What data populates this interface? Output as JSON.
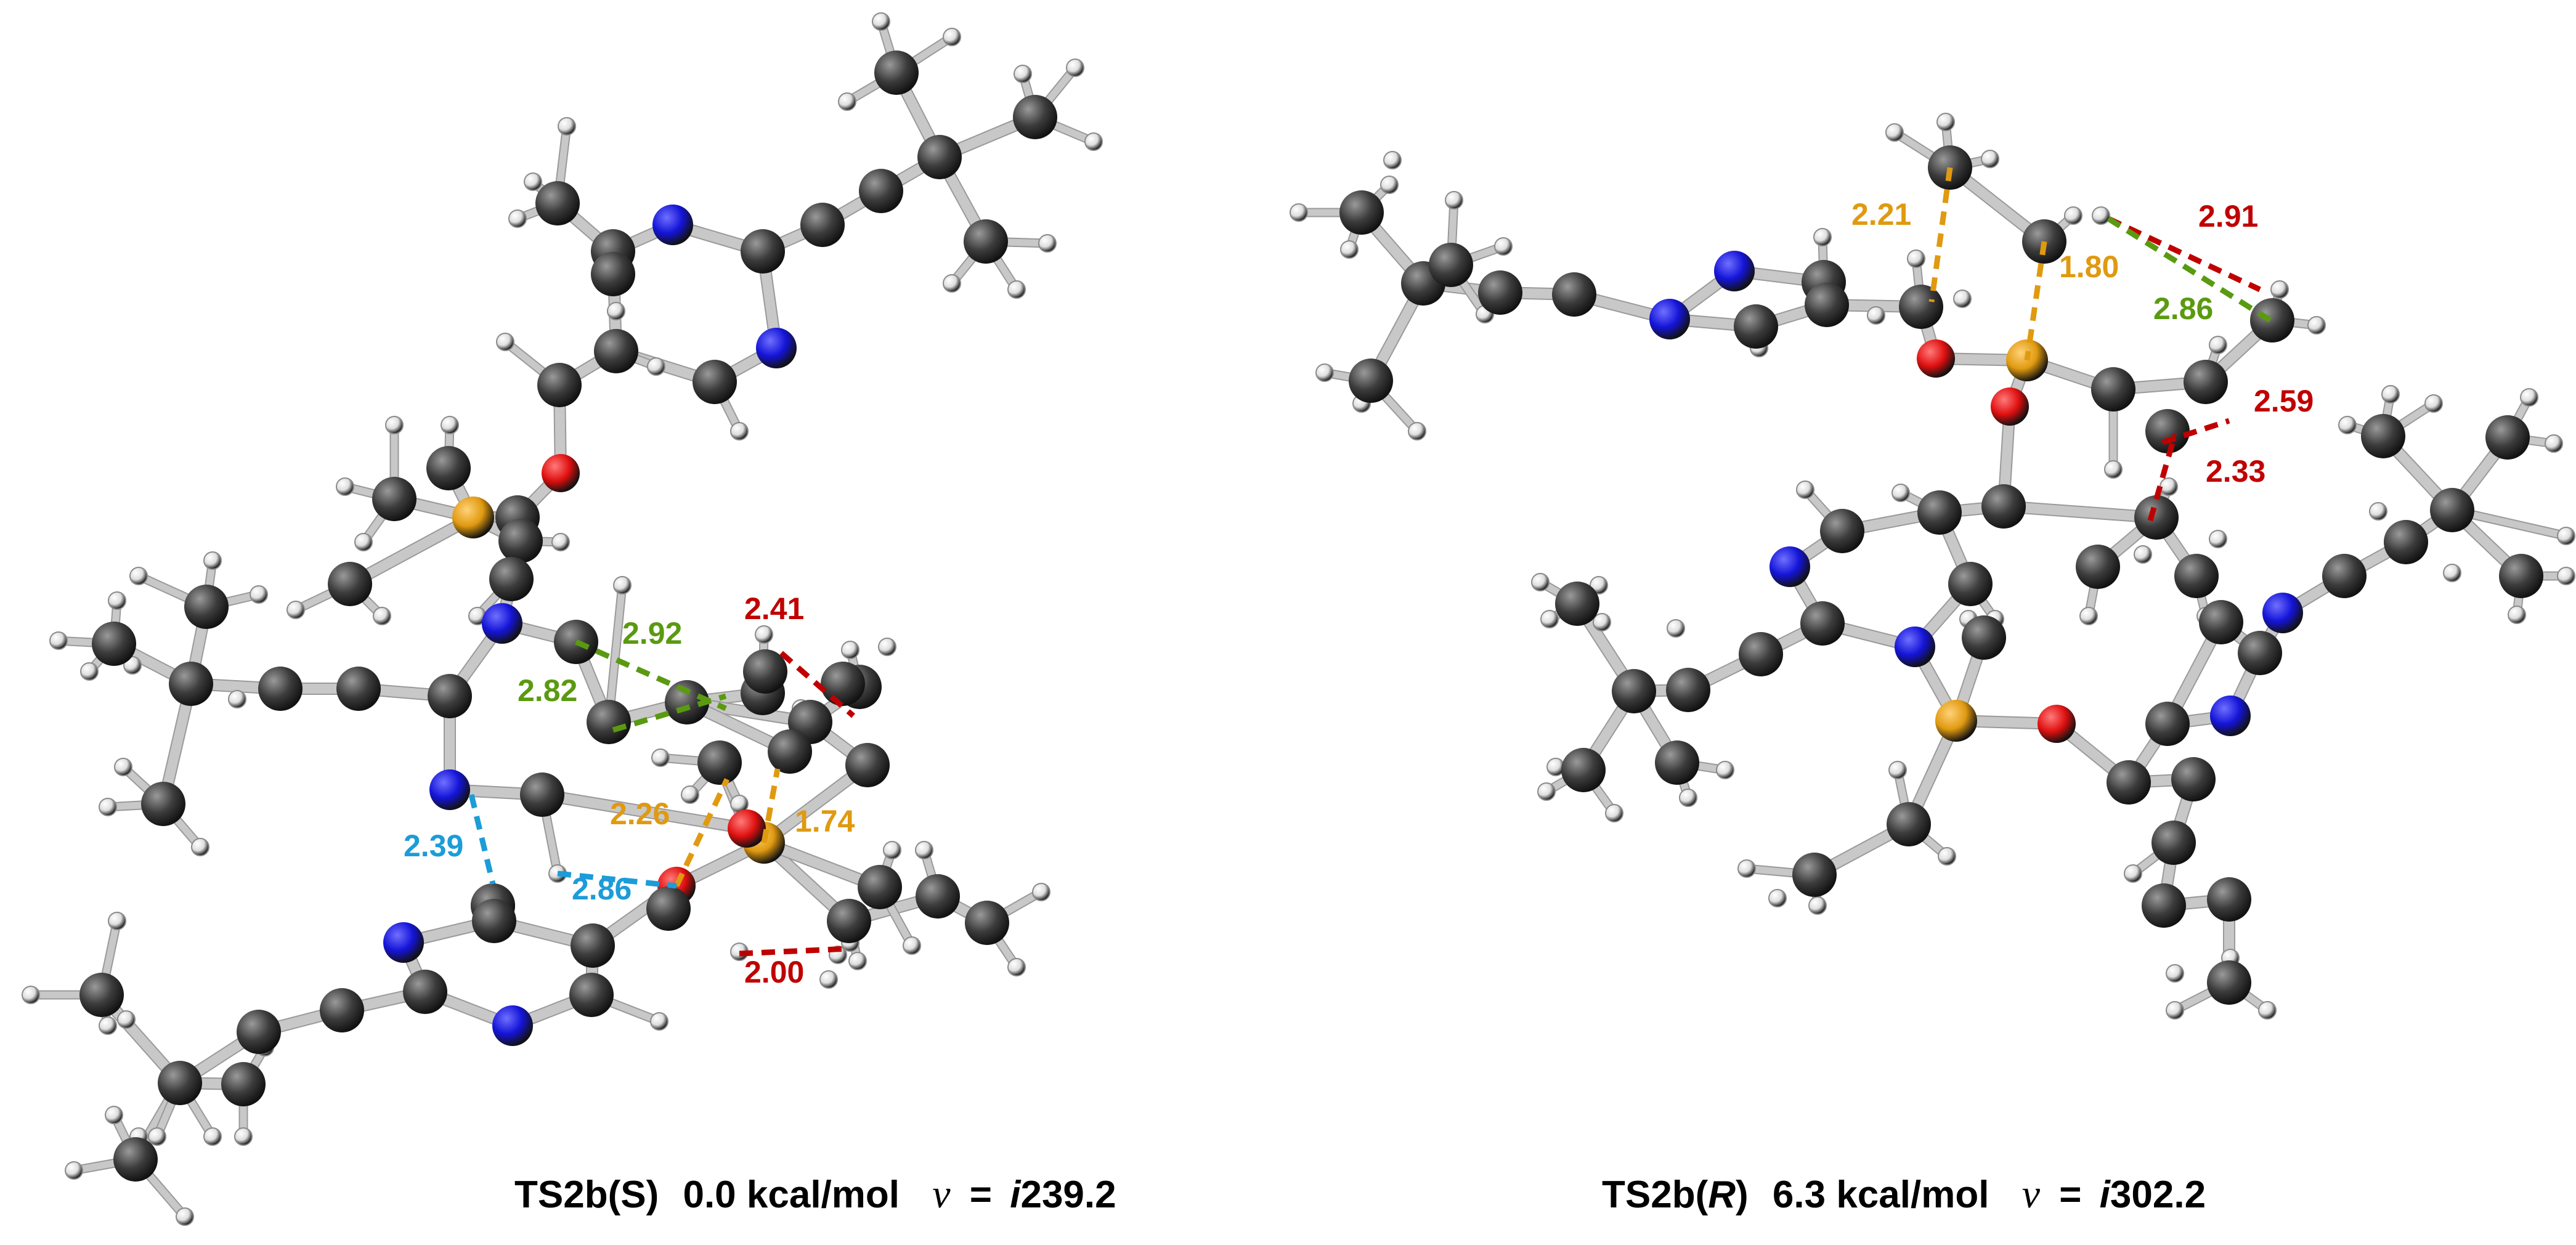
{
  "colors": {
    "carbon": "#3c3c3c",
    "hydrogen": "#dedede",
    "nitrogen": "#1414d8",
    "oxygen": "#e01010",
    "phosphorus": "#e09a10",
    "bond": "#c8c8c8",
    "red": "#c00000",
    "green": "#5a9a10",
    "orange": "#e09a10",
    "blue": "#1c9cd8"
  },
  "structures": [
    {
      "id": "ts2b-s",
      "caption": {
        "name": "TS2b(S)",
        "energy": "0.0 kcal/mol",
        "nu_symbol": "ν",
        "nu_eq": "=",
        "nu_i": "i",
        "nu_value": "239.2"
      },
      "distances": [
        {
          "value": "2.92",
          "color": "green"
        },
        {
          "value": "2.82",
          "color": "green"
        },
        {
          "value": "2.41",
          "color": "red"
        },
        {
          "value": "2.26",
          "color": "orange"
        },
        {
          "value": "1.74",
          "color": "orange"
        },
        {
          "value": "2.39",
          "color": "blue"
        },
        {
          "value": "2.86",
          "color": "blue"
        },
        {
          "value": "2.00",
          "color": "red"
        }
      ]
    },
    {
      "id": "ts2b-r",
      "caption": {
        "name_pre": "TS2b(",
        "name_ital": "R",
        "name_post": ")",
        "energy": "6.3 kcal/mol",
        "nu_symbol": "ν",
        "nu_eq": "=",
        "nu_i": "i",
        "nu_value": "302.2"
      },
      "distances": [
        {
          "value": "2.21",
          "color": "orange"
        },
        {
          "value": "1.80",
          "color": "orange"
        },
        {
          "value": "2.91",
          "color": "red"
        },
        {
          "value": "2.86",
          "color": "green"
        },
        {
          "value": "2.59",
          "color": "red"
        },
        {
          "value": "2.33",
          "color": "red"
        }
      ]
    }
  ]
}
